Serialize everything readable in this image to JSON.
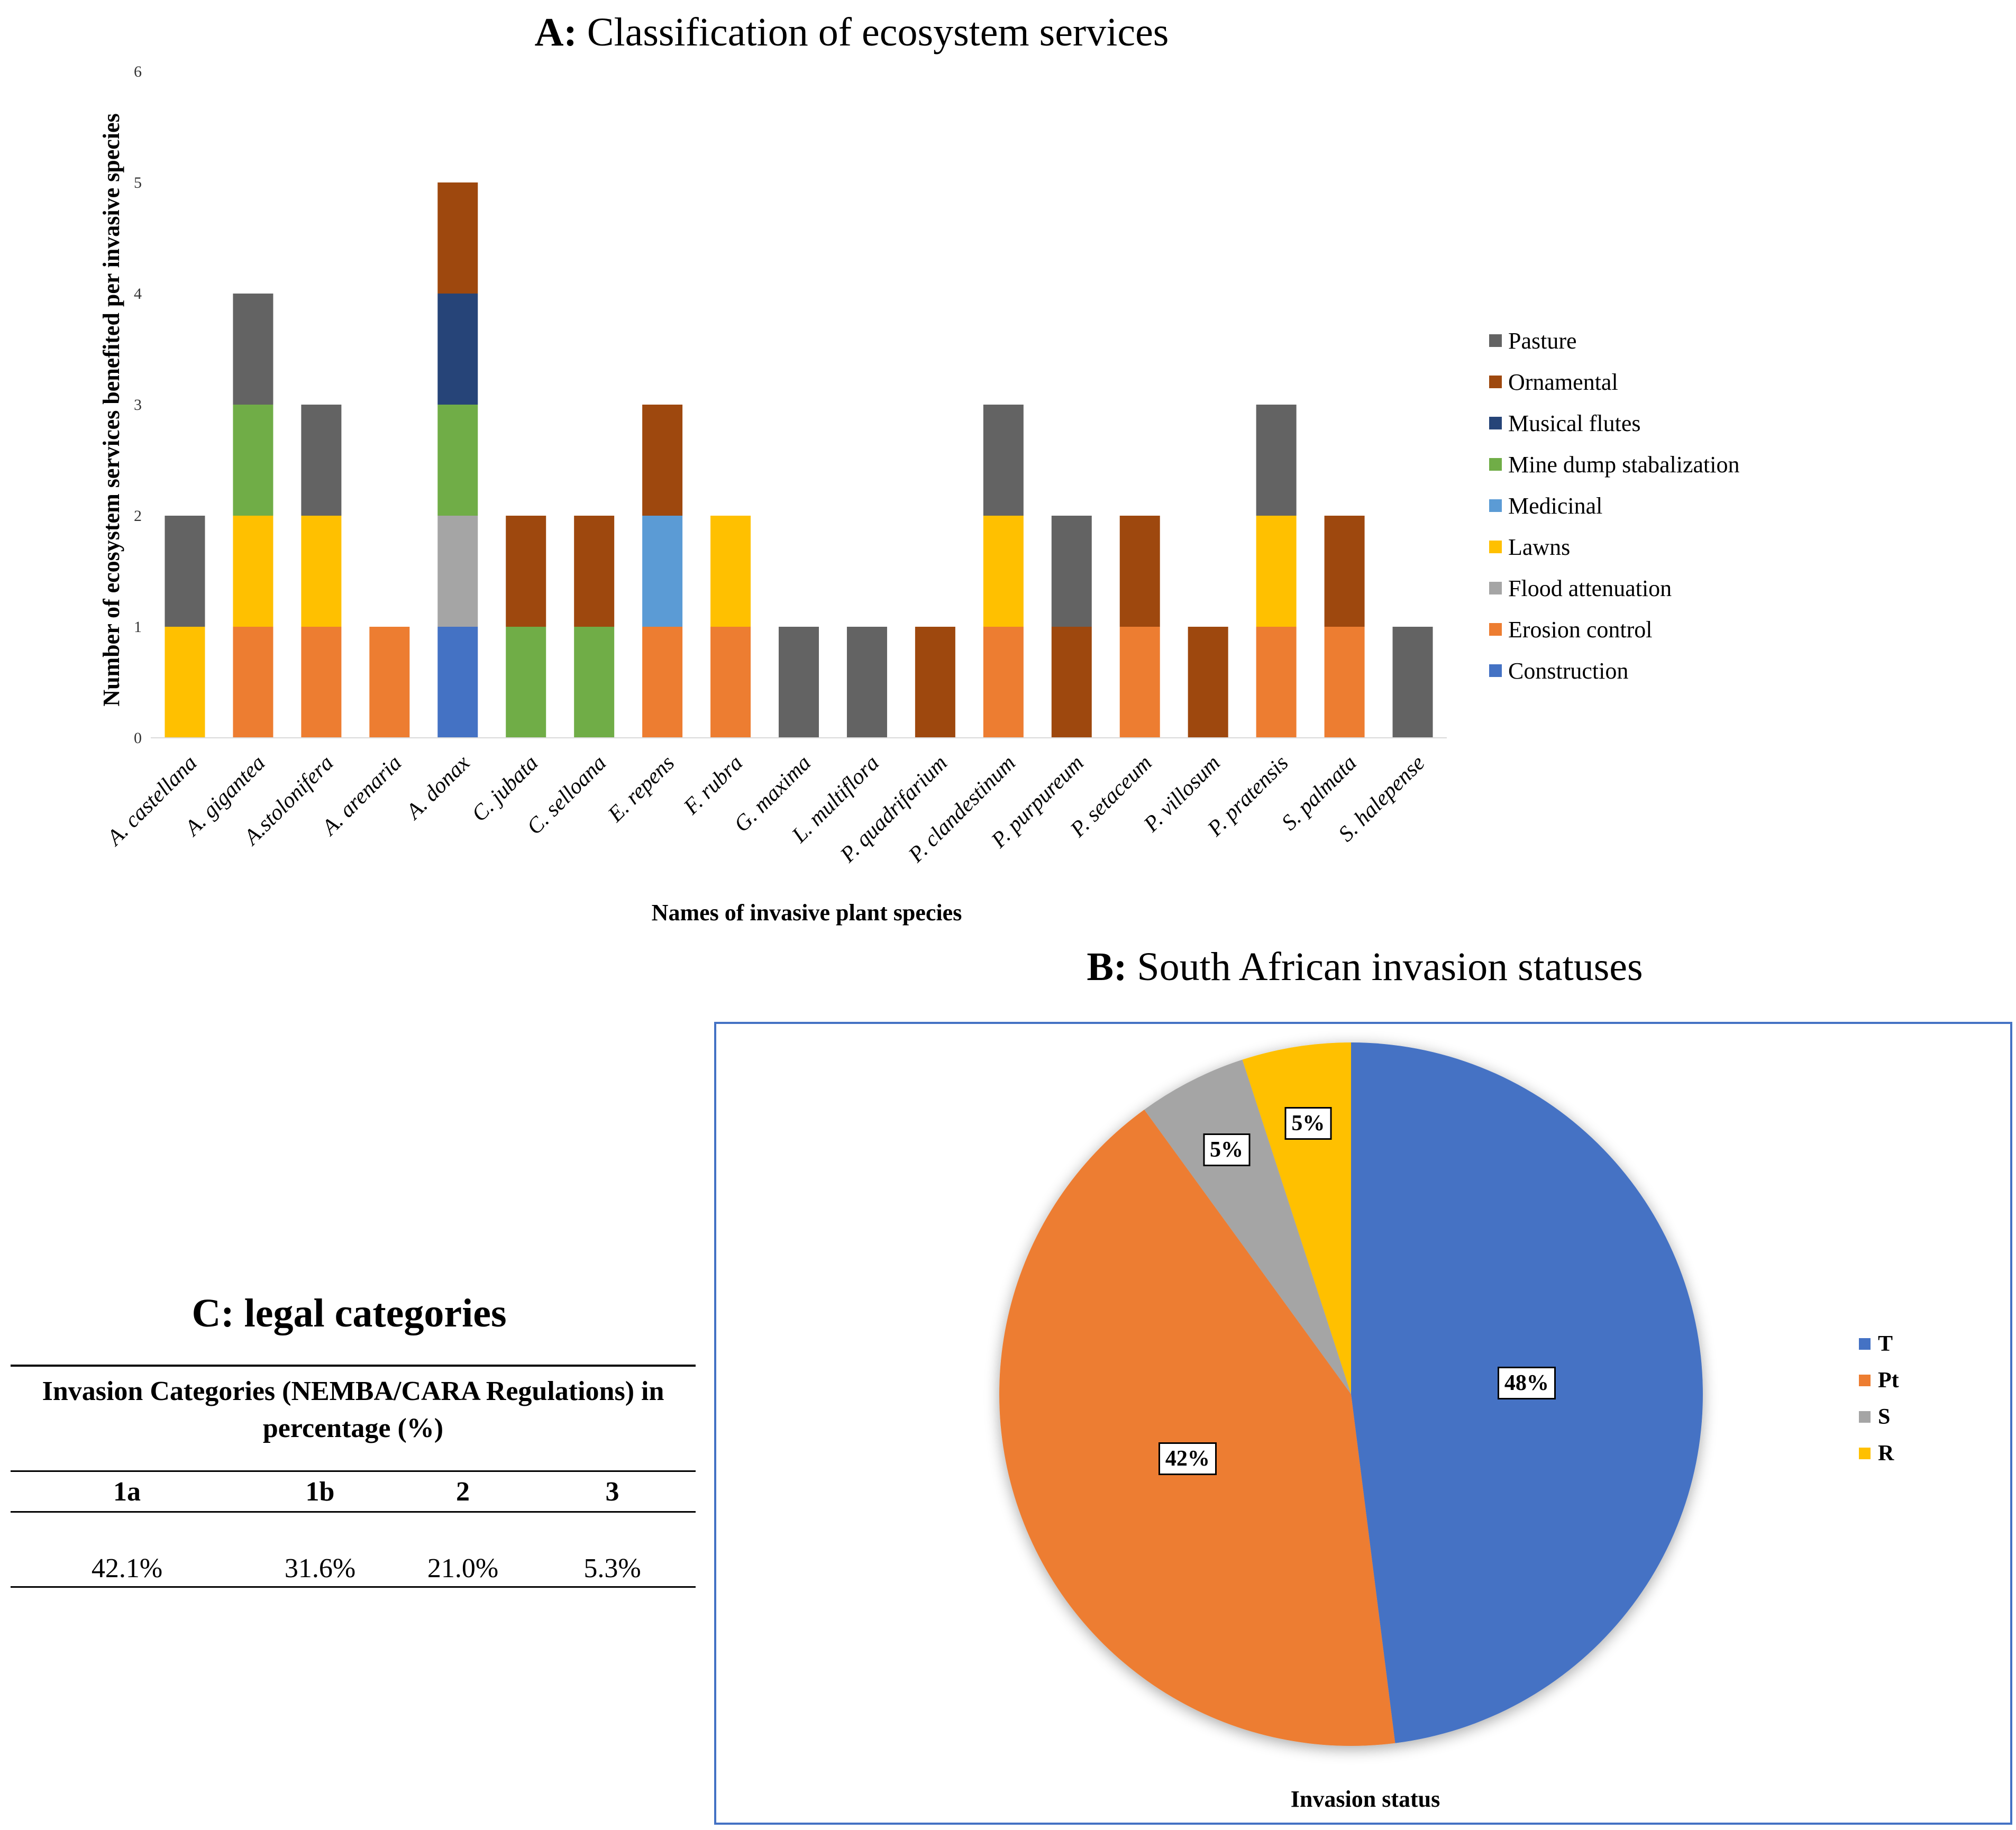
{
  "panel_a": {
    "letter": "A:",
    "title": "Classification of ecosystem services"
  },
  "panel_b": {
    "letter": "B:",
    "title": "South African invasion statuses"
  },
  "panel_c": {
    "title": "C: legal categories",
    "table_header": "Invasion Categories (NEMBA/CARA Regulations) in percentage (%)",
    "columns": [
      "1a",
      "1b",
      "2",
      "3"
    ],
    "values": [
      "42.1%",
      "31.6%",
      "21.0%",
      "5.3%"
    ]
  },
  "chart_data": [
    {
      "type": "bar",
      "stacked": true,
      "title": "Classification of ecosystem services",
      "xlabel": "Names of invasive plant species",
      "ylabel": "Number of ecosystem services benefited per invasive species",
      "ylim": [
        0,
        6
      ],
      "yticks": [
        "0",
        "1",
        "2",
        "3",
        "4",
        "5",
        "6"
      ],
      "legend_position": "right",
      "categories": [
        "A. castellana",
        "A. gigantea",
        "A.stolonifera",
        "A. arenaria",
        "A. donax",
        "C. jubata",
        "C. selloana",
        "E. repens",
        "F. rubra",
        "G. maxima",
        "L. multiflora",
        "P. quadrifarium",
        "P. clandestinum",
        "P. purpureum",
        "P. setaceum",
        "P. villosum",
        "P. pratensis",
        "S. palmata",
        "S. halepense"
      ],
      "series": [
        {
          "name": "Construction",
          "color": "#4472c4",
          "values": [
            0,
            0,
            0,
            0,
            1,
            0,
            0,
            0,
            0,
            0,
            0,
            0,
            0,
            0,
            0,
            0,
            0,
            0,
            0
          ]
        },
        {
          "name": "Erosion control",
          "color": "#ed7d31",
          "values": [
            0,
            1,
            1,
            1,
            0,
            0,
            0,
            1,
            1,
            0,
            0,
            0,
            1,
            0,
            1,
            0,
            1,
            1,
            0
          ]
        },
        {
          "name": "Flood attenuation",
          "color": "#a5a5a5",
          "values": [
            0,
            0,
            0,
            0,
            1,
            0,
            0,
            0,
            0,
            0,
            0,
            0,
            0,
            0,
            0,
            0,
            0,
            0,
            0
          ]
        },
        {
          "name": "Lawns",
          "color": "#ffc000",
          "values": [
            1,
            1,
            1,
            0,
            0,
            0,
            0,
            0,
            1,
            0,
            0,
            0,
            1,
            0,
            0,
            0,
            1,
            0,
            0
          ]
        },
        {
          "name": "Medicinal",
          "color": "#5b9bd5",
          "values": [
            0,
            0,
            0,
            0,
            0,
            0,
            0,
            1,
            0,
            0,
            0,
            0,
            0,
            0,
            0,
            0,
            0,
            0,
            0
          ]
        },
        {
          "name": "Mine dump stabalization",
          "color": "#70ad47",
          "values": [
            0,
            1,
            0,
            0,
            1,
            1,
            1,
            0,
            0,
            0,
            0,
            0,
            0,
            0,
            0,
            0,
            0,
            0,
            0
          ]
        },
        {
          "name": "Musical flutes",
          "color": "#264478",
          "values": [
            0,
            0,
            0,
            0,
            1,
            0,
            0,
            0,
            0,
            0,
            0,
            0,
            0,
            0,
            0,
            0,
            0,
            0,
            0
          ]
        },
        {
          "name": "Ornamental",
          "color": "#9e480e",
          "values": [
            0,
            0,
            0,
            0,
            1,
            1,
            1,
            1,
            0,
            0,
            0,
            1,
            0,
            1,
            1,
            1,
            0,
            1,
            0
          ]
        },
        {
          "name": "Pasture",
          "color": "#636363",
          "values": [
            1,
            1,
            1,
            0,
            0,
            0,
            0,
            0,
            0,
            1,
            1,
            0,
            1,
            1,
            0,
            0,
            1,
            0,
            1
          ]
        }
      ]
    },
    {
      "type": "pie",
      "title": "South African invasion statuses",
      "xlabel": "Invasion status",
      "legend_position": "right",
      "labels": [
        "T",
        "Pt",
        "S",
        "R"
      ],
      "values": [
        48,
        42,
        5,
        5
      ],
      "value_labels": [
        "48%",
        "42%",
        "5%",
        "5%"
      ],
      "colors": [
        "#4472c4",
        "#ed7d31",
        "#a5a5a5",
        "#ffc000"
      ]
    }
  ]
}
